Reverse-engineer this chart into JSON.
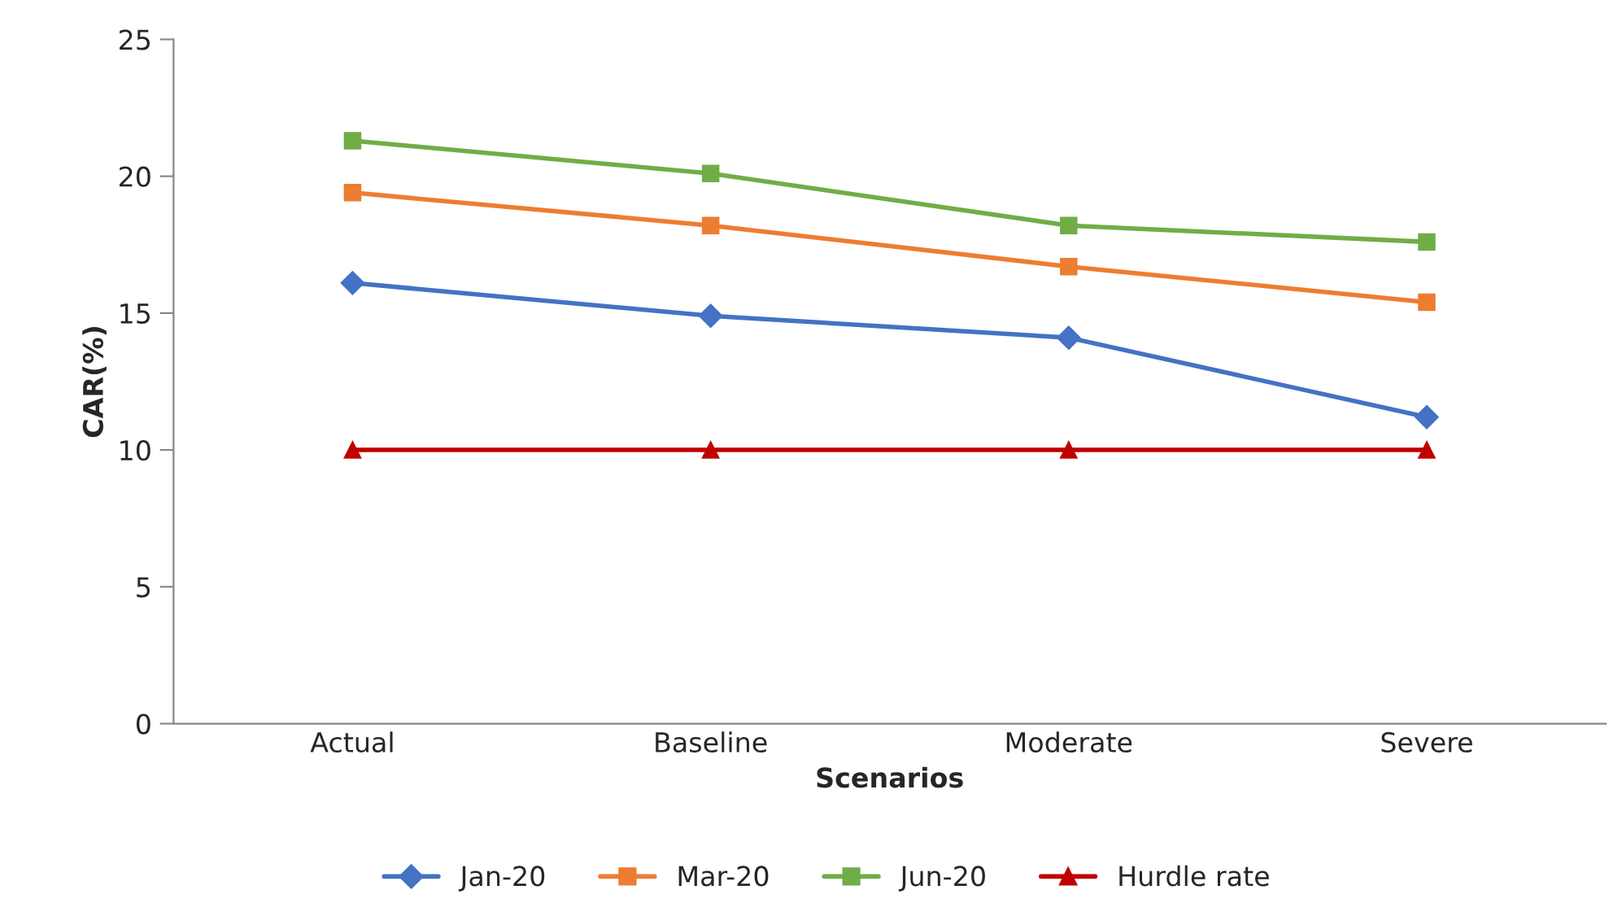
{
  "chart_data": {
    "type": "line",
    "xlabel": "Scenarios",
    "ylabel": "CAR(%)",
    "categories": [
      "Actual",
      "Baseline",
      "Moderate",
      "Severe"
    ],
    "series": [
      {
        "name": "Jan-20",
        "color": "#4472c4",
        "marker": "diamond",
        "values": [
          16.1,
          14.9,
          14.1,
          11.2
        ]
      },
      {
        "name": "Mar-20",
        "color": "#ed7d31",
        "marker": "square",
        "values": [
          19.4,
          18.2,
          16.7,
          15.4
        ]
      },
      {
        "name": "Jun-20",
        "color": "#70ad47",
        "marker": "square",
        "values": [
          21.3,
          20.1,
          18.2,
          17.6
        ]
      },
      {
        "name": "Hurdle rate",
        "color": "#c00000",
        "marker": "triangle",
        "values": [
          10,
          10,
          10,
          10
        ]
      }
    ],
    "ylim": [
      0,
      25
    ],
    "yticks": [
      0,
      5,
      10,
      15,
      20,
      25
    ],
    "grid": false,
    "legend": "bottom",
    "line_style": "solid"
  }
}
